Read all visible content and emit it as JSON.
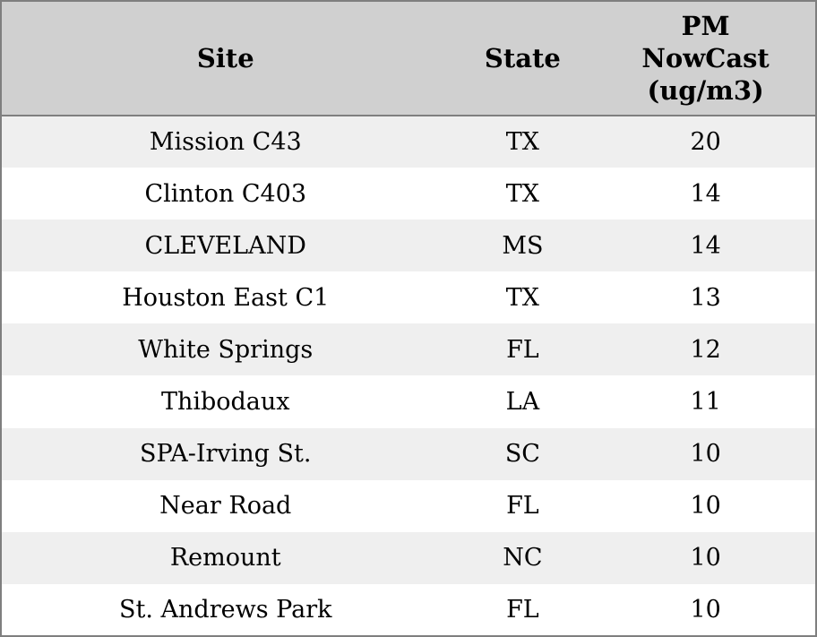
{
  "colors": {
    "header_bg": "#d0d0d0",
    "row_alt_bg": "#efefef",
    "row_bg": "#ffffff",
    "border": "#7f7f7f",
    "text": "#000000"
  },
  "chart_data": {
    "type": "table",
    "title": "",
    "columns": [
      "Site",
      "State",
      "PM NowCast (ug/m3)"
    ],
    "rows": [
      [
        "Mission C43",
        "TX",
        20
      ],
      [
        "Clinton C403",
        "TX",
        14
      ],
      [
        "CLEVELAND",
        "MS",
        14
      ],
      [
        "Houston East C1",
        "TX",
        13
      ],
      [
        "White Springs",
        "FL",
        12
      ],
      [
        "Thibodaux",
        "LA",
        11
      ],
      [
        "SPA-Irving St.",
        "SC",
        10
      ],
      [
        "Near Road",
        "FL",
        10
      ],
      [
        "Remount",
        "NC",
        10
      ],
      [
        "St. Andrews Park",
        "FL",
        10
      ]
    ]
  }
}
